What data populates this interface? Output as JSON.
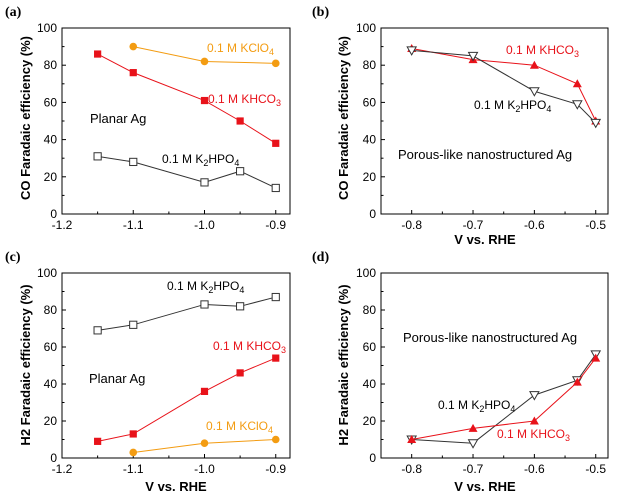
{
  "chart_data": [
    {
      "type": "line",
      "panel_label": "(a)",
      "xlabel": "",
      "ylabel": "CO Faradaic efficiency (%)",
      "xlim": [
        -1.2,
        -0.88
      ],
      "ylim": [
        0,
        100
      ],
      "xticks": [
        "-1.2",
        "-1.1",
        "-1.0",
        "-0.9"
      ],
      "yticks": [
        "0",
        "20",
        "40",
        "60",
        "80",
        "100"
      ],
      "annotation": "Planar Ag",
      "series": [
        {
          "name": "0.1 M KClO4",
          "name_main": "0.1 M KClO",
          "name_sub": "4",
          "color": "#f39c12",
          "marker": "circle-filled",
          "x": [
            -1.1,
            -1.0,
            -0.9
          ],
          "y": [
            90,
            82,
            81
          ]
        },
        {
          "name": "0.1 M KHCO3",
          "name_main": "0.1 M KHCO",
          "name_sub": "3",
          "color": "#e8121a",
          "marker": "square-filled",
          "x": [
            -1.15,
            -1.1,
            -1.0,
            -0.95,
            -0.9
          ],
          "y": [
            86,
            76,
            61,
            50,
            38
          ]
        },
        {
          "name": "0.1 M K2HPO4",
          "name_pre": "0.1 M K",
          "name_sub1": "2",
          "name_mid": "HPO",
          "name_sub2": "4",
          "color": "#333333",
          "marker": "square-open",
          "x": [
            -1.15,
            -1.1,
            -1.0,
            -0.95,
            -0.9
          ],
          "y": [
            31,
            28,
            17,
            23,
            14
          ]
        }
      ]
    },
    {
      "type": "line",
      "panel_label": "(b)",
      "xlabel": "V vs. RHE",
      "ylabel": "CO Faradaic efficiency (%)",
      "xlim": [
        -0.85,
        -0.48
      ],
      "ylim": [
        0,
        100
      ],
      "xticks": [
        "-0.8",
        "-0.7",
        "-0.6",
        "-0.5"
      ],
      "yticks": [
        "0",
        "20",
        "40",
        "60",
        "80",
        "100"
      ],
      "annotation": "Porous-like nanostructured Ag",
      "series": [
        {
          "name": "0.1 M KHCO3",
          "name_main": "0.1 M KHCO",
          "name_sub": "3",
          "color": "#e8121a",
          "marker": "triangle-up-filled",
          "x": [
            -0.8,
            -0.7,
            -0.6,
            -0.53,
            -0.5
          ],
          "y": [
            89,
            83,
            80,
            70,
            50
          ]
        },
        {
          "name": "0.1 M K2HPO4",
          "name_pre": "0.1 M K",
          "name_sub1": "2",
          "name_mid": "HPO",
          "name_sub2": "4",
          "color": "#333333",
          "marker": "triangle-down-open",
          "x": [
            -0.8,
            -0.7,
            -0.6,
            -0.53,
            -0.5
          ],
          "y": [
            88,
            85,
            66,
            59,
            49
          ]
        }
      ]
    },
    {
      "type": "line",
      "panel_label": "(c)",
      "xlabel": "V vs. RHE",
      "ylabel": "H2 Faradaic efficiency (%)",
      "xlim": [
        -1.2,
        -0.88
      ],
      "ylim": [
        0,
        100
      ],
      "xticks": [
        "-1.2",
        "-1.1",
        "-1.0",
        "-0.9"
      ],
      "yticks": [
        "0",
        "20",
        "40",
        "60",
        "80",
        "100"
      ],
      "annotation": "Planar Ag",
      "series": [
        {
          "name": "0.1 M K2HPO4",
          "name_pre": "0.1 M K",
          "name_sub1": "2",
          "name_mid": "HPO",
          "name_sub2": "4",
          "color": "#333333",
          "marker": "square-open",
          "x": [
            -1.15,
            -1.1,
            -1.0,
            -0.95,
            -0.9
          ],
          "y": [
            69,
            72,
            83,
            82,
            87
          ]
        },
        {
          "name": "0.1 M KHCO3",
          "name_main": "0.1 M KHCO",
          "name_sub": "3",
          "color": "#e8121a",
          "marker": "square-filled",
          "x": [
            -1.15,
            -1.1,
            -1.0,
            -0.95,
            -0.9
          ],
          "y": [
            9,
            13,
            36,
            46,
            54
          ]
        },
        {
          "name": "0.1 M KClO4",
          "name_main": "0.1 M KClO",
          "name_sub": "4",
          "color": "#f39c12",
          "marker": "circle-filled",
          "x": [
            -1.1,
            -1.0,
            -0.9
          ],
          "y": [
            3,
            8,
            10
          ]
        }
      ]
    },
    {
      "type": "line",
      "panel_label": "(d)",
      "xlabel": "V vs. RHE",
      "ylabel": "H2 Faradaic efficiency (%)",
      "xlim": [
        -0.85,
        -0.48
      ],
      "ylim": [
        0,
        100
      ],
      "xticks": [
        "-0.8",
        "-0.7",
        "-0.6",
        "-0.5"
      ],
      "yticks": [
        "0",
        "20",
        "40",
        "60",
        "80",
        "100"
      ],
      "annotation": "Porous-like nanostructured Ag",
      "series": [
        {
          "name": "0.1 M K2HPO4",
          "name_pre": "0.1 M K",
          "name_sub1": "2",
          "name_mid": "HPO",
          "name_sub2": "4",
          "color": "#333333",
          "marker": "triangle-down-open",
          "x": [
            -0.8,
            -0.7,
            -0.6,
            -0.53,
            -0.5
          ],
          "y": [
            10,
            8,
            34,
            42,
            56
          ]
        },
        {
          "name": "0.1 M KHCO3",
          "name_main": "0.1 M KHCO",
          "name_sub": "3",
          "color": "#e8121a",
          "marker": "triangle-up-filled",
          "x": [
            -0.8,
            -0.7,
            -0.6,
            -0.53,
            -0.5
          ],
          "y": [
            10,
            16,
            20,
            41,
            54
          ]
        }
      ]
    }
  ]
}
